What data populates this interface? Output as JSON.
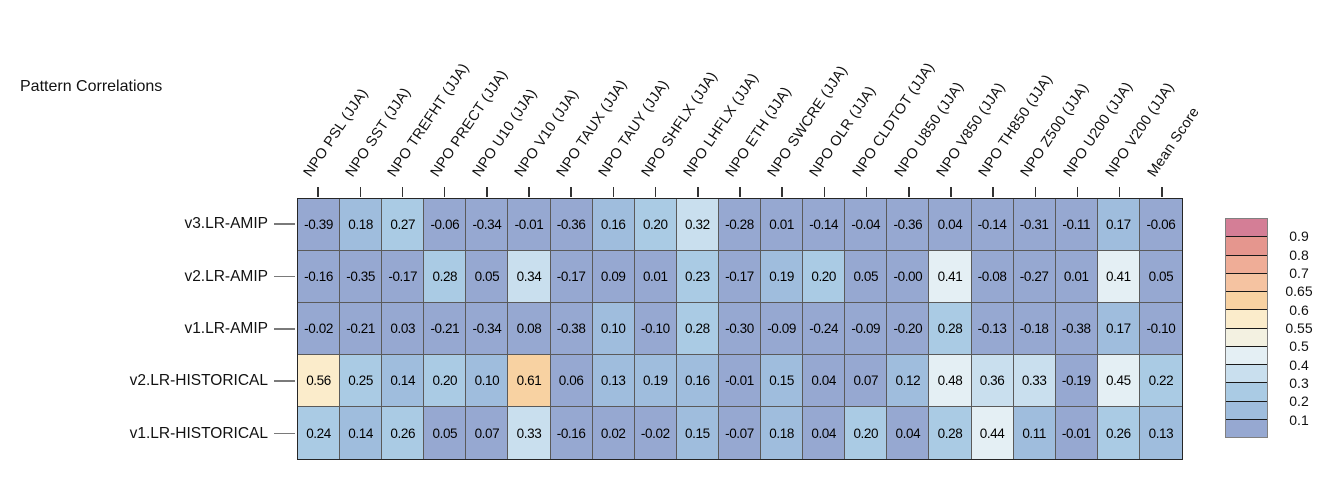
{
  "figure": {
    "title": "Pattern Correlations"
  },
  "chart_data": {
    "type": "heatmap",
    "title": "Pattern Correlations",
    "columns": [
      "NPO PSL (JJA)",
      "NPO SST (JJA)",
      "NPO TREFHT (JJA)",
      "NPO PRECT (JJA)",
      "NPO U10 (JJA)",
      "NPO V10 (JJA)",
      "NPO TAUX (JJA)",
      "NPO TAUY (JJA)",
      "NPO SHFLX (JJA)",
      "NPO LHFLX (JJA)",
      "NPO ETH (JJA)",
      "NPO SWCRE (JJA)",
      "NPO OLR (JJA)",
      "NPO CLDTOT (JJA)",
      "NPO U850 (JJA)",
      "NPO V850 (JJA)",
      "NPO TH850 (JJA)",
      "NPO Z500 (JJA)",
      "NPO U200 (JJA)",
      "NPO V200 (JJA)",
      "Mean Score"
    ],
    "rows": [
      "v3.LR-AMIP",
      "v2.LR-AMIP",
      "v1.LR-AMIP",
      "v2.LR-HISTORICAL",
      "v1.LR-HISTORICAL"
    ],
    "values": [
      [
        "-0.39",
        "0.18",
        "0.27",
        "-0.06",
        "-0.34",
        "-0.01",
        "-0.36",
        "0.16",
        "0.20",
        "0.32",
        "-0.28",
        "0.01",
        "-0.14",
        "-0.04",
        "-0.36",
        "0.04",
        "-0.14",
        "-0.31",
        "-0.11",
        "0.17",
        "-0.06"
      ],
      [
        "-0.16",
        "-0.35",
        "-0.17",
        "0.28",
        "0.05",
        "0.34",
        "-0.17",
        "0.09",
        "0.01",
        "0.23",
        "-0.17",
        "0.19",
        "0.20",
        "0.05",
        "-0.00",
        "0.41",
        "-0.08",
        "-0.27",
        "0.01",
        "0.41",
        "0.05"
      ],
      [
        "-0.02",
        "-0.21",
        "0.03",
        "-0.21",
        "-0.34",
        "0.08",
        "-0.38",
        "0.10",
        "-0.10",
        "0.28",
        "-0.30",
        "-0.09",
        "-0.24",
        "-0.09",
        "-0.20",
        "0.28",
        "-0.13",
        "-0.18",
        "-0.38",
        "0.17",
        "-0.10"
      ],
      [
        "0.56",
        "0.25",
        "0.14",
        "0.20",
        "0.10",
        "0.61",
        "0.06",
        "0.13",
        "0.19",
        "0.16",
        "-0.01",
        "0.15",
        "0.04",
        "0.07",
        "0.12",
        "0.48",
        "0.36",
        "0.33",
        "-0.19",
        "0.45",
        "0.22"
      ],
      [
        "0.24",
        "0.14",
        "0.26",
        "0.05",
        "0.07",
        "0.33",
        "-0.16",
        "0.02",
        "-0.02",
        "0.15",
        "-0.07",
        "0.18",
        "0.04",
        "0.20",
        "0.04",
        "0.28",
        "0.44",
        "0.11",
        "-0.01",
        "0.26",
        "0.13"
      ]
    ],
    "legend": {
      "position": "right",
      "tick_labels": [
        "0.9",
        "0.8",
        "0.7",
        "0.65",
        "0.6",
        "0.55",
        "0.5",
        "0.4",
        "0.3",
        "0.2",
        "0.1"
      ],
      "band_thresholds_desc": [
        0.9,
        0.8,
        0.7,
        0.65,
        0.6,
        0.55,
        0.5,
        0.4,
        0.3,
        0.2,
        0.1
      ],
      "band_colors_top_to_bottom": [
        "#d47e96",
        "#e5968e",
        "#efad97",
        "#f5c3a1",
        "#f8d2a2",
        "#fbeccb",
        "#f3f1e1",
        "#e4eff4",
        "#c9dfee",
        "#aacbe4",
        "#9fbddd",
        "#96a8d1"
      ]
    },
    "colors": {
      "cell_text": "#000000",
      "grid_line": "#5a5a5a",
      "outer_border": "#262626",
      "background": "#ffffff"
    }
  }
}
